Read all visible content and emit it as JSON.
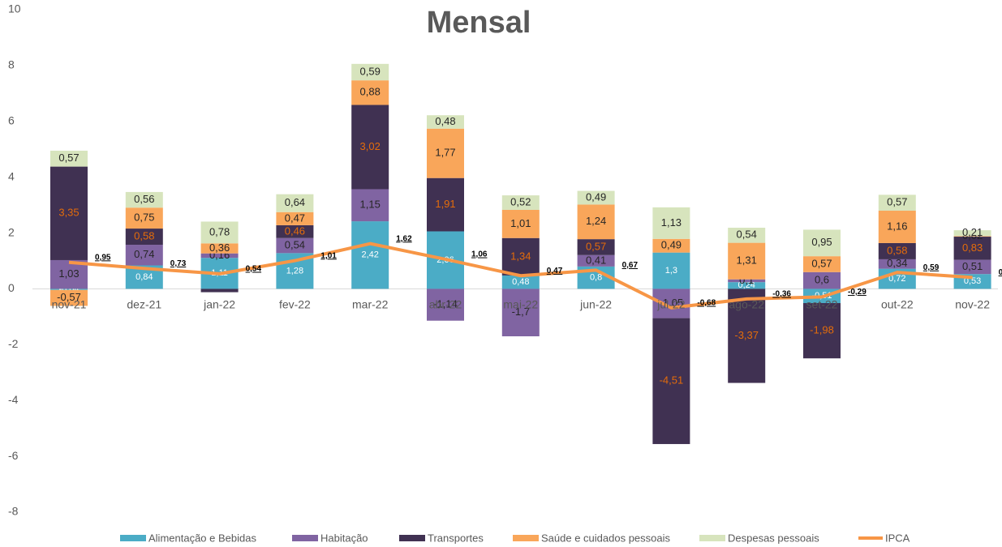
{
  "chart_data": {
    "type": "stacked_bar_line",
    "title": "Mensal",
    "categories": [
      "nov-21",
      "dez-21",
      "jan-22",
      "fev-22",
      "mar-22",
      "abr-22",
      "mai-22",
      "jun-22",
      "jul-22",
      "ago-22",
      "set-22",
      "out-22",
      "nov-22"
    ],
    "ylim": [
      -8,
      10
    ],
    "yticks": [
      -8,
      -6,
      -4,
      -2,
      0,
      2,
      4,
      6,
      8,
      10
    ],
    "legend": "bottom",
    "series": [
      {
        "name": "Alimentação e Bebidas",
        "color": "#4bacc6",
        "kind": "bar",
        "values": [
          -0.04,
          0.84,
          1.11,
          1.28,
          2.42,
          2.06,
          0.48,
          0.8,
          1.3,
          0.24,
          -0.51,
          0.72,
          0.53
        ],
        "value_labels": [
          "-0,04",
          "0,84",
          "1,11",
          "1,28",
          "2,42",
          "2,06",
          "0,48",
          "0,8",
          "1,3",
          "0,24",
          "-0,51",
          "0,72",
          "0,53"
        ]
      },
      {
        "name": "Habitação",
        "color": "#8064a2",
        "kind": "bar",
        "values": [
          1.03,
          0.74,
          0.16,
          0.54,
          1.15,
          -1.14,
          -1.7,
          0.41,
          -1.05,
          0.1,
          0.6,
          0.34,
          0.51
        ],
        "value_labels": [
          "1,03",
          "0,74",
          "0,16",
          "0,54",
          "1,15",
          "-1,14",
          "-1,7",
          "0,41",
          "-1,05",
          "0,1",
          "0,6",
          "0,34",
          "0,51"
        ]
      },
      {
        "name": "Transportes",
        "color": "#403152",
        "kind": "bar",
        "values": [
          3.35,
          0.58,
          -0.12,
          0.46,
          3.02,
          1.91,
          1.34,
          0.57,
          -4.51,
          -3.37,
          -1.98,
          0.58,
          0.83
        ],
        "value_labels": [
          "3,35",
          "0,58",
          null,
          "0,46",
          "3,02",
          "1,91",
          "1,34",
          "0,57",
          "-4,51",
          "-3,37",
          "-1,98",
          "0,58",
          "0,83"
        ]
      },
      {
        "name": "Saúde e cuidados pessoais",
        "color": "#f9a65a",
        "kind": "bar",
        "values": [
          -0.57,
          0.75,
          0.36,
          0.47,
          0.88,
          1.77,
          1.01,
          1.24,
          0.49,
          1.31,
          0.57,
          1.16,
          0.02
        ],
        "value_labels": [
          "-0,57",
          "0,75",
          "0,36",
          "0,47",
          "0,88",
          "1,77",
          "1,01",
          "1,24",
          "0,49",
          "1,31",
          "0,57",
          "1,16",
          "0,02"
        ]
      },
      {
        "name": "Despesas pessoais",
        "color": "#d7e4bd",
        "kind": "bar",
        "values": [
          0.57,
          0.56,
          0.78,
          0.64,
          0.59,
          0.48,
          0.52,
          0.49,
          1.13,
          0.54,
          0.95,
          0.57,
          0.21
        ],
        "value_labels": [
          "0,57",
          "0,56",
          "0,78",
          "0,64",
          "0,59",
          "0,48",
          "0,52",
          "0,49",
          "1,13",
          "0,54",
          "0,95",
          "0,57",
          "0,21"
        ]
      },
      {
        "name": "IPCA",
        "color": "#f79646",
        "kind": "line",
        "values": [
          0.95,
          0.73,
          0.54,
          1.01,
          1.62,
          1.06,
          0.47,
          0.67,
          -0.68,
          -0.36,
          -0.29,
          0.59,
          0.41
        ],
        "value_labels": [
          "0,95",
          "0,73",
          "0,54",
          "1,01",
          "1,62",
          "1,06",
          "0,47",
          "0,67",
          "-0,68",
          "-0,36",
          "-0,29",
          "0,59",
          "0,41"
        ]
      }
    ]
  }
}
